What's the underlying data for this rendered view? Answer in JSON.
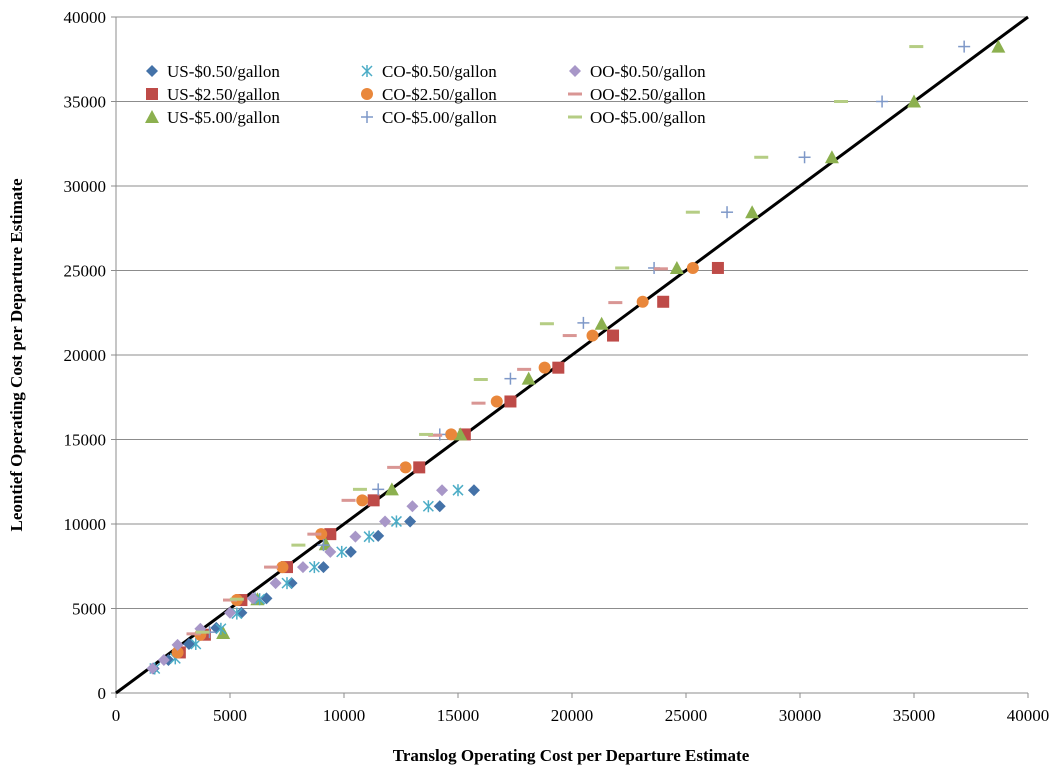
{
  "chart_data": {
    "type": "scatter",
    "title": "",
    "xlabel": "Translog Operating Cost per Departure Estimate",
    "ylabel": "Leontief Operating Cost per Departure Estimate",
    "xlim": [
      0,
      40000
    ],
    "ylim": [
      0,
      40000
    ],
    "x_ticks": [
      "0",
      "5000",
      "10000",
      "15000",
      "20000",
      "25000",
      "30000",
      "35000",
      "40000"
    ],
    "y_ticks": [
      "0",
      "5000",
      "10000",
      "15000",
      "20000",
      "25000",
      "30000",
      "35000",
      "40000"
    ],
    "grid": "horizontal",
    "legend_position": "top-left",
    "reference_line": {
      "from": [
        0,
        0
      ],
      "to": [
        40000,
        40000
      ],
      "color": "#000000"
    },
    "series": [
      {
        "name": "US-$0.50/gallon",
        "marker": "diamond",
        "color": "#4472A8",
        "points": [
          [
            1650,
            1450
          ],
          [
            2300,
            1950
          ],
          [
            3200,
            2900
          ],
          [
            4400,
            3850
          ],
          [
            5500,
            4750
          ],
          [
            6600,
            5600
          ],
          [
            7700,
            6500
          ],
          [
            9100,
            7450
          ],
          [
            10300,
            8350
          ],
          [
            11500,
            9300
          ],
          [
            12900,
            10150
          ],
          [
            14200,
            11050
          ],
          [
            15700,
            12000
          ]
        ]
      },
      {
        "name": "US-$2.50/gallon",
        "marker": "square",
        "color": "#BE4B48",
        "points": [
          [
            2800,
            2400
          ],
          [
            3900,
            3450
          ],
          [
            5500,
            5500
          ],
          [
            7500,
            7450
          ],
          [
            9400,
            9400
          ],
          [
            11300,
            11400
          ],
          [
            13300,
            13350
          ],
          [
            15300,
            15300
          ],
          [
            17300,
            17250
          ],
          [
            19400,
            19250
          ],
          [
            21800,
            21150
          ],
          [
            24000,
            23150
          ],
          [
            26400,
            25150
          ]
        ]
      },
      {
        "name": "US-$5.00/gallon",
        "marker": "triangle",
        "color": "#8CB04F",
        "points": [
          [
            4700,
            3550
          ],
          [
            6200,
            5550
          ],
          [
            9200,
            8800
          ],
          [
            12100,
            12050
          ],
          [
            15100,
            15300
          ],
          [
            18100,
            18600
          ],
          [
            21300,
            21850
          ],
          [
            24600,
            25150
          ],
          [
            27900,
            28450
          ],
          [
            31400,
            31700
          ],
          [
            35000,
            35000
          ],
          [
            38700,
            38250
          ]
        ]
      },
      {
        "name": "CO-$0.50/gallon",
        "marker": "asterisk",
        "color": "#4BACC6",
        "points": [
          [
            1700,
            1450
          ],
          [
            2600,
            2050
          ],
          [
            3500,
            2900
          ],
          [
            4600,
            3800
          ],
          [
            5300,
            4700
          ],
          [
            6300,
            5550
          ],
          [
            7500,
            6500
          ],
          [
            8700,
            7450
          ],
          [
            9900,
            8350
          ],
          [
            11100,
            9250
          ],
          [
            12300,
            10150
          ],
          [
            13700,
            11050
          ],
          [
            15000,
            12000
          ]
        ]
      },
      {
        "name": "CO-$2.50/gallon",
        "marker": "circle",
        "color": "#E9873B",
        "points": [
          [
            2700,
            2400
          ],
          [
            3700,
            3450
          ],
          [
            5300,
            5500
          ],
          [
            7300,
            7450
          ],
          [
            9000,
            9400
          ],
          [
            10800,
            11400
          ],
          [
            12700,
            13350
          ],
          [
            14700,
            15300
          ],
          [
            16700,
            17250
          ],
          [
            18800,
            19250
          ],
          [
            20900,
            21150
          ],
          [
            23100,
            23150
          ],
          [
            25300,
            25150
          ]
        ]
      },
      {
        "name": "CO-$5.00/gallon",
        "marker": "plus",
        "color": "#7E98C8",
        "points": [
          [
            4100,
            3600
          ],
          [
            6100,
            5600
          ],
          [
            9100,
            8750
          ],
          [
            11500,
            12050
          ],
          [
            14200,
            15300
          ],
          [
            17300,
            18600
          ],
          [
            20500,
            21900
          ],
          [
            23600,
            25150
          ],
          [
            26800,
            28450
          ],
          [
            30200,
            31700
          ],
          [
            33600,
            35000
          ],
          [
            37200,
            38250
          ]
        ]
      },
      {
        "name": "OO-$0.50/gallon",
        "marker": "diamond",
        "color": "#A897C8",
        "points": [
          [
            1600,
            1450
          ],
          [
            2100,
            1950
          ],
          [
            2700,
            2850
          ],
          [
            3700,
            3800
          ],
          [
            5000,
            4750
          ],
          [
            6000,
            5600
          ],
          [
            7000,
            6500
          ],
          [
            8200,
            7450
          ],
          [
            9400,
            8350
          ],
          [
            10500,
            9250
          ],
          [
            11800,
            10150
          ],
          [
            13000,
            11050
          ],
          [
            14300,
            12000
          ]
        ]
      },
      {
        "name": "OO-$2.50/gallon",
        "marker": "dash",
        "color": "#D99694",
        "points": [
          [
            3400,
            3500
          ],
          [
            5000,
            5500
          ],
          [
            6800,
            7450
          ],
          [
            8700,
            9400
          ],
          [
            10200,
            11400
          ],
          [
            12200,
            13350
          ],
          [
            14000,
            15250
          ],
          [
            15900,
            17150
          ],
          [
            17900,
            19150
          ],
          [
            19900,
            21150
          ],
          [
            21900,
            23100
          ],
          [
            23900,
            25100
          ]
        ]
      },
      {
        "name": "OO-$5.00/gallon",
        "marker": "dash",
        "color": "#B5CD84",
        "points": [
          [
            3800,
            3600
          ],
          [
            5300,
            5550
          ],
          [
            8000,
            8750
          ],
          [
            10700,
            12050
          ],
          [
            13600,
            15300
          ],
          [
            16000,
            18550
          ],
          [
            18900,
            21850
          ],
          [
            22200,
            25150
          ],
          [
            25300,
            28450
          ],
          [
            28300,
            31700
          ],
          [
            31800,
            35000
          ],
          [
            35100,
            38250
          ]
        ]
      }
    ]
  }
}
